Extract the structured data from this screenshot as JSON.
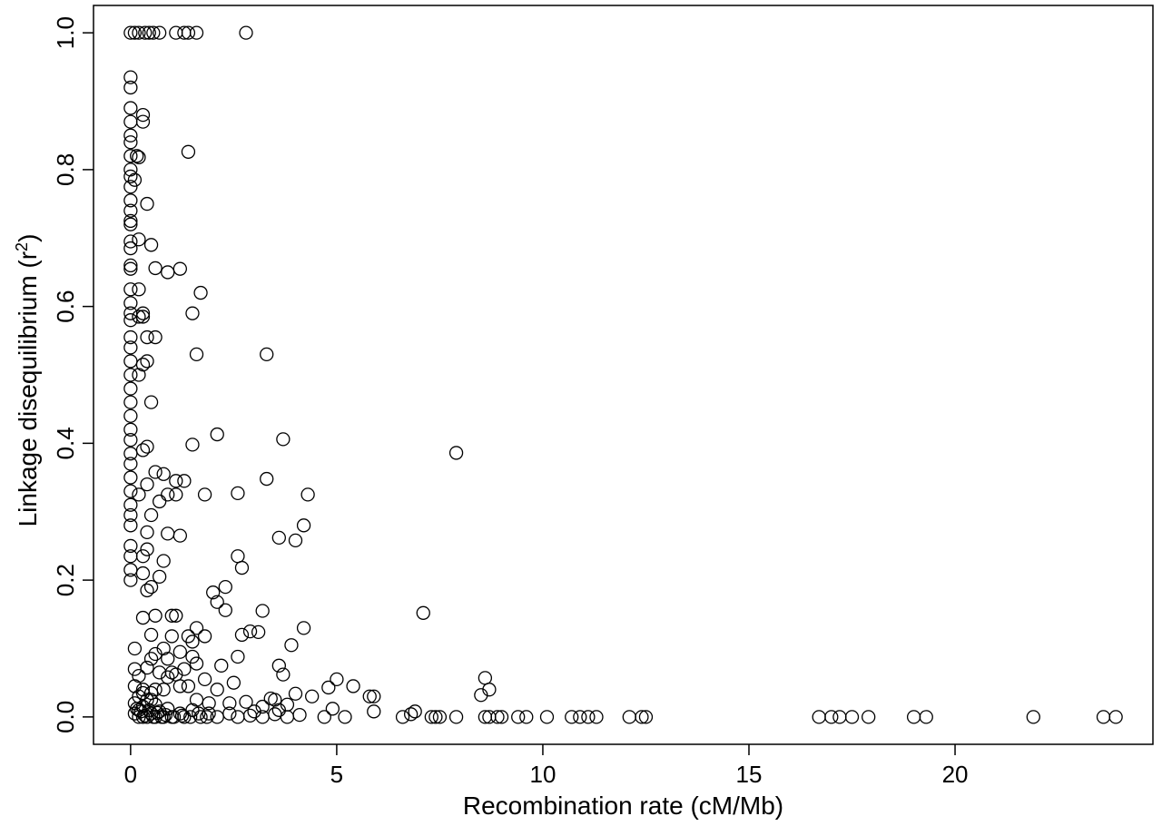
{
  "chart_data": {
    "type": "scatter",
    "xlabel": "Recombination rate (cM/Mb)",
    "ylabel": "Linkage disequilibrium (r",
    "ylabel_sup": "2",
    "ylabel_end": ")",
    "xlim": [
      -0.9,
      24.8
    ],
    "ylim": [
      -0.04,
      1.04
    ],
    "xticks": [
      0,
      5,
      10,
      15,
      20
    ],
    "xtick_labels": [
      "0",
      "5",
      "10",
      "15",
      "20"
    ],
    "yticks": [
      0.0,
      0.2,
      0.4,
      0.6,
      0.8,
      1.0
    ],
    "ytick_labels": [
      "0.0",
      "0.2",
      "0.4",
      "0.6",
      "0.8",
      "1.0"
    ],
    "marker": "open-circle",
    "marker_color": "#000000",
    "grid": false,
    "x": [
      0.0,
      0.1,
      0.2,
      0.35,
      0.45,
      0.55,
      0.7,
      1.1,
      1.3,
      1.4,
      1.6,
      2.8,
      0.0,
      0.0,
      0.0,
      0.0,
      0.0,
      0.0,
      0.0,
      0.0,
      0.0,
      0.0,
      0.0,
      0.0,
      0.0,
      0.0,
      0.0,
      0.0,
      0.0,
      0.0,
      0.0,
      0.0,
      0.0,
      0.0,
      0.0,
      0.0,
      0.0,
      0.0,
      0.0,
      0.0,
      0.0,
      0.0,
      0.0,
      0.0,
      0.0,
      0.0,
      0.0,
      0.0,
      0.0,
      0.0,
      0.0,
      0.0,
      0.0,
      0.0,
      0.3,
      0.3,
      0.15,
      0.2,
      0.1,
      0.4,
      1.4,
      0.2,
      0.5,
      0.6,
      0.9,
      1.2,
      1.7,
      0.2,
      0.3,
      0.6,
      1.5,
      1.6,
      3.3,
      0.4,
      0.3,
      0.2,
      0.4,
      0.5,
      0.2,
      0.3,
      2.1,
      3.7,
      1.5,
      7.9,
      0.3,
      0.4,
      0.6,
      0.8,
      1.1,
      1.3,
      3.3,
      0.4,
      0.9,
      1.1,
      1.8,
      2.6,
      4.3,
      0.7,
      0.5,
      0.4,
      0.9,
      1.2,
      4.2,
      3.6,
      4.0,
      0.2,
      0.4,
      0.3,
      2.6,
      2.7,
      0.8,
      0.7,
      0.3,
      0.5,
      0.4,
      2.3,
      2.0,
      2.1,
      2.3,
      3.2,
      7.1,
      0.3,
      0.6,
      1.0,
      1.1,
      1.6,
      2.9,
      3.1,
      4.2,
      2.7,
      0.5,
      1.0,
      1.4,
      1.5,
      3.9,
      1.2,
      1.8,
      0.6,
      0.8,
      2.6,
      1.5,
      0.5,
      0.9,
      3.6,
      1.6,
      2.2,
      1.3,
      1.0,
      3.7,
      0.4,
      0.7,
      1.1,
      1.8,
      0.9,
      2.5,
      1.4,
      2.1,
      5.0,
      1.2,
      5.4,
      8.6,
      4.8,
      0.6,
      0.8,
      8.5,
      8.7,
      0.3,
      5.9,
      4.4,
      3.4,
      0.5,
      1.6,
      2.4,
      4.0,
      2.8,
      3.5,
      5.8,
      3.2,
      3.8,
      1.9,
      4.9,
      3.0,
      3.6,
      0.1,
      0.1,
      0.1,
      0.1,
      0.1,
      0.2,
      0.2,
      0.2,
      0.2,
      0.3,
      0.3,
      0.3,
      0.4,
      0.4,
      0.5,
      0.5,
      0.6,
      0.6,
      0.7,
      0.8,
      0.9,
      1.0,
      1.2,
      1.3,
      1.5,
      1.7,
      1.9,
      2.1,
      2.4,
      2.6,
      2.9,
      3.2,
      3.5,
      3.8,
      4.1,
      0.15,
      0.25,
      0.35,
      0.45,
      0.55,
      0.65,
      0.75,
      0.85,
      1.05,
      1.25,
      1.45,
      1.65,
      1.85,
      4.7,
      5.2,
      5.9,
      6.6,
      6.8,
      6.9,
      7.3,
      7.4,
      7.5,
      7.9,
      8.6,
      8.7,
      8.9,
      9.0,
      9.4,
      9.6,
      10.1,
      10.7,
      10.9,
      11.1,
      11.3,
      12.1,
      12.4,
      12.5,
      16.7,
      17.0,
      17.2,
      17.5,
      17.9,
      19.0,
      19.3,
      21.9,
      23.6,
      23.9
    ],
    "y": [
      1.0,
      1.0,
      1.0,
      1.0,
      1.0,
      1.0,
      1.0,
      1.0,
      1.0,
      1.0,
      1.0,
      1.0,
      0.935,
      0.92,
      0.89,
      0.87,
      0.85,
      0.84,
      0.82,
      0.8,
      0.79,
      0.775,
      0.755,
      0.74,
      0.725,
      0.72,
      0.695,
      0.685,
      0.66,
      0.655,
      0.625,
      0.605,
      0.59,
      0.58,
      0.555,
      0.54,
      0.52,
      0.5,
      0.48,
      0.46,
      0.44,
      0.42,
      0.405,
      0.385,
      0.37,
      0.35,
      0.33,
      0.31,
      0.295,
      0.28,
      0.25,
      0.235,
      0.215,
      0.2,
      0.88,
      0.87,
      0.82,
      0.818,
      0.785,
      0.75,
      0.826,
      0.698,
      0.69,
      0.656,
      0.65,
      0.655,
      0.62,
      0.625,
      0.59,
      0.555,
      0.59,
      0.53,
      0.53,
      0.555,
      0.515,
      0.5,
      0.52,
      0.46,
      0.585,
      0.585,
      0.413,
      0.406,
      0.398,
      0.386,
      0.39,
      0.395,
      0.358,
      0.355,
      0.345,
      0.345,
      0.348,
      0.34,
      0.325,
      0.325,
      0.325,
      0.327,
      0.325,
      0.315,
      0.295,
      0.27,
      0.268,
      0.265,
      0.28,
      0.262,
      0.258,
      0.325,
      0.245,
      0.235,
      0.235,
      0.218,
      0.228,
      0.205,
      0.21,
      0.19,
      0.185,
      0.19,
      0.182,
      0.168,
      0.156,
      0.155,
      0.152,
      0.145,
      0.148,
      0.148,
      0.148,
      0.13,
      0.125,
      0.124,
      0.13,
      0.12,
      0.12,
      0.118,
      0.118,
      0.11,
      0.105,
      0.095,
      0.118,
      0.092,
      0.1,
      0.088,
      0.088,
      0.085,
      0.085,
      0.075,
      0.078,
      0.075,
      0.07,
      0.065,
      0.062,
      0.072,
      0.065,
      0.062,
      0.055,
      0.058,
      0.05,
      0.045,
      0.04,
      0.055,
      0.045,
      0.045,
      0.057,
      0.043,
      0.04,
      0.04,
      0.032,
      0.04,
      0.035,
      0.03,
      0.03,
      0.027,
      0.025,
      0.025,
      0.02,
      0.034,
      0.022,
      0.025,
      0.03,
      0.015,
      0.018,
      0.02,
      0.012,
      0.008,
      0.01,
      0.005,
      0.02,
      0.045,
      0.07,
      0.1,
      0.0,
      0.03,
      0.06,
      0.01,
      0.0,
      0.04,
      0.015,
      0.0,
      0.025,
      0.005,
      0.035,
      0.0,
      0.018,
      0.008,
      0.0,
      0.012,
      0.0,
      0.005,
      0.0,
      0.01,
      0.0,
      0.005,
      0.0,
      0.005,
      0.0,
      0.002,
      0.0,
      0.004,
      0.0,
      0.003,
      0.012,
      0.008,
      0.002,
      0.01,
      0.0,
      0.006,
      0.0,
      0.003,
      0.0,
      0.002,
      0.0,
      0.005,
      0.0,
      0.0,
      0.0,
      0.008,
      0.0,
      0.004,
      0.008,
      0.0,
      0.0,
      0.0,
      0.0,
      0.0,
      0.0,
      0.0,
      0.0,
      0.0,
      0.0,
      0.0,
      0.0,
      0.0,
      0.0,
      0.0,
      0.0,
      0.0,
      0.0,
      0.0,
      0.0,
      0.0,
      0.0,
      0.0,
      0.0,
      0.0,
      0.0,
      0.0,
      0.0
    ]
  }
}
